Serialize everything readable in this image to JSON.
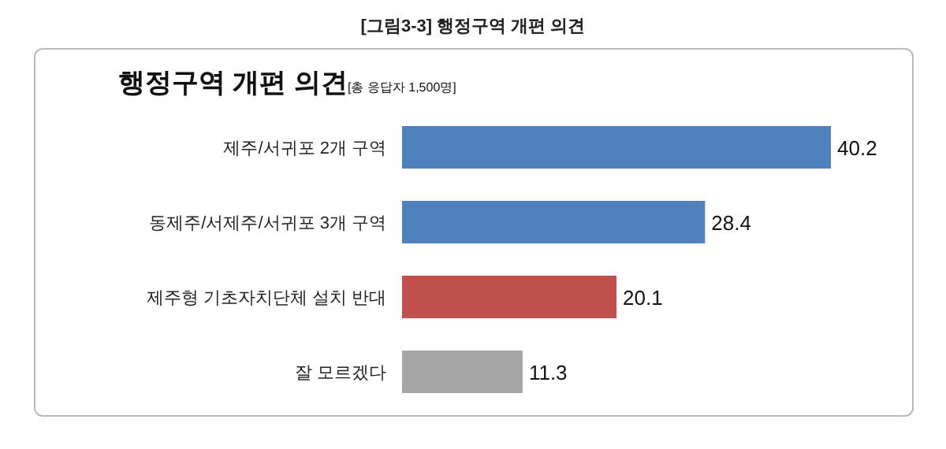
{
  "chart_data": {
    "type": "bar",
    "orientation": "horizontal",
    "title": "행정구역 개편 의견",
    "subtitle": "[총 응답자 1,500명]",
    "annotations": [
      "[그림3-3] 행정구역 개편 의견"
    ],
    "categories": [
      "제주/서귀포 2개 구역",
      "동제주/서제주/서귀포 3개 구역",
      "제주형 기초자치단체 설치 반대",
      "잘 모르겠다"
    ],
    "values": [
      40.2,
      28.4,
      20.1,
      11.3
    ],
    "colors": [
      "#4f81bd",
      "#4f81bd",
      "#c0504d",
      "#a6a6a6"
    ],
    "data_labels": true
  }
}
